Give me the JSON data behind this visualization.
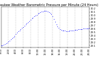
{
  "title": "Milwaukee Weather Barometric Pressure per Minute (24 Hours)",
  "title_fontsize": 3.5,
  "bg_color": "#ffffff",
  "plot_bg_color": "#ffffff",
  "dot_color": "#0000ff",
  "dot_size": 0.3,
  "grid_color": "#888888",
  "tick_fontsize": 2.5,
  "ylim": [
    29.05,
    30.25
  ],
  "xlim": [
    0,
    1440
  ],
  "y_tick_values": [
    29.1,
    29.2,
    29.3,
    29.4,
    29.5,
    29.6,
    29.7,
    29.8,
    29.9,
    30.0,
    30.1,
    30.2
  ],
  "x_tick_positions": [
    0,
    120,
    240,
    360,
    480,
    600,
    720,
    840,
    960,
    1080,
    1200,
    1320,
    1440
  ],
  "x_tick_labels": [
    "0:00",
    "2:00",
    "4:00",
    "6:00",
    "8:00",
    "10:00",
    "12:00",
    "14:00",
    "16:00",
    "18:00",
    "20:00",
    "22:00",
    "24:00"
  ],
  "pressure_data": [
    [
      0,
      29.1
    ],
    [
      20,
      29.11
    ],
    [
      40,
      29.13
    ],
    [
      60,
      29.15
    ],
    [
      80,
      29.17
    ],
    [
      100,
      29.19
    ],
    [
      120,
      29.22
    ],
    [
      140,
      29.25
    ],
    [
      160,
      29.28
    ],
    [
      180,
      29.32
    ],
    [
      200,
      29.35
    ],
    [
      220,
      29.39
    ],
    [
      240,
      29.44
    ],
    [
      260,
      29.48
    ],
    [
      280,
      29.52
    ],
    [
      300,
      29.55
    ],
    [
      320,
      29.59
    ],
    [
      340,
      29.63
    ],
    [
      360,
      29.66
    ],
    [
      380,
      29.7
    ],
    [
      400,
      29.74
    ],
    [
      420,
      29.77
    ],
    [
      440,
      29.8
    ],
    [
      460,
      29.84
    ],
    [
      480,
      29.87
    ],
    [
      500,
      29.91
    ],
    [
      520,
      29.94
    ],
    [
      540,
      29.97
    ],
    [
      560,
      30.0
    ],
    [
      580,
      30.02
    ],
    [
      600,
      30.05
    ],
    [
      620,
      30.07
    ],
    [
      640,
      30.09
    ],
    [
      660,
      30.11
    ],
    [
      680,
      30.12
    ],
    [
      700,
      30.13
    ],
    [
      720,
      30.14
    ],
    [
      740,
      30.13
    ],
    [
      760,
      30.12
    ],
    [
      780,
      30.1
    ],
    [
      800,
      30.07
    ],
    [
      820,
      30.03
    ],
    [
      840,
      29.97
    ],
    [
      860,
      29.9
    ],
    [
      880,
      29.82
    ],
    [
      900,
      29.74
    ],
    [
      920,
      29.68
    ],
    [
      940,
      29.63
    ],
    [
      960,
      29.59
    ],
    [
      980,
      29.57
    ],
    [
      1000,
      29.55
    ],
    [
      1020,
      29.55
    ],
    [
      1040,
      29.54
    ],
    [
      1060,
      29.53
    ],
    [
      1080,
      29.53
    ],
    [
      1100,
      29.53
    ],
    [
      1120,
      29.54
    ],
    [
      1140,
      29.54
    ],
    [
      1160,
      29.55
    ],
    [
      1180,
      29.55
    ],
    [
      1200,
      29.56
    ],
    [
      1220,
      29.56
    ],
    [
      1240,
      29.57
    ],
    [
      1260,
      29.58
    ],
    [
      1280,
      29.58
    ],
    [
      1300,
      29.59
    ],
    [
      1320,
      29.59
    ],
    [
      1340,
      29.6
    ],
    [
      1360,
      29.6
    ],
    [
      1380,
      29.61
    ],
    [
      1400,
      29.61
    ],
    [
      1420,
      29.61
    ],
    [
      1440,
      29.62
    ]
  ]
}
